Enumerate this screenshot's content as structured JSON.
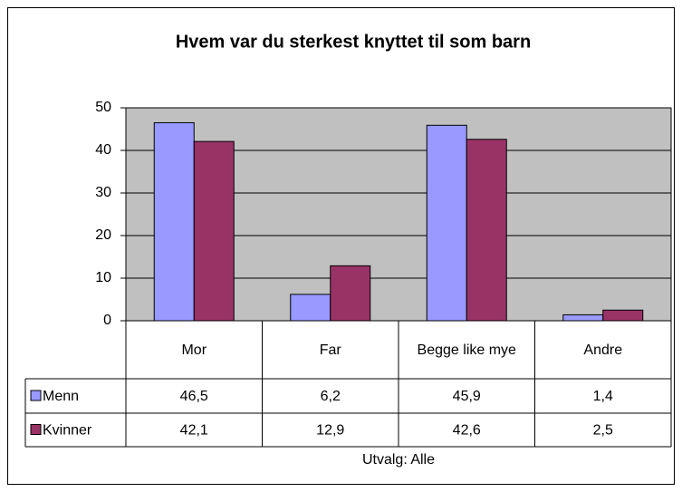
{
  "chart_data": {
    "type": "bar",
    "title": "Hvem var du sterkest knyttet til som barn",
    "categories": [
      "Mor",
      "Far",
      "Begge like mye",
      "Andre"
    ],
    "series": [
      {
        "name": "Menn",
        "color": "#9999ff",
        "values": [
          46.5,
          6.2,
          45.9,
          1.4
        ],
        "value_labels": [
          "46,5",
          "6,2",
          "45,9",
          "1,4"
        ]
      },
      {
        "name": "Kvinner",
        "color": "#993366",
        "values": [
          42.1,
          12.9,
          42.6,
          2.5
        ],
        "value_labels": [
          "42,1",
          "12,9",
          "42,6",
          "2,5"
        ]
      }
    ],
    "ylim": [
      0,
      50
    ],
    "yticks": [
      0,
      10,
      20,
      30,
      40,
      50
    ],
    "grid": true,
    "plot_background": "#c0c0c0",
    "note": "Utvalg: Alle"
  }
}
